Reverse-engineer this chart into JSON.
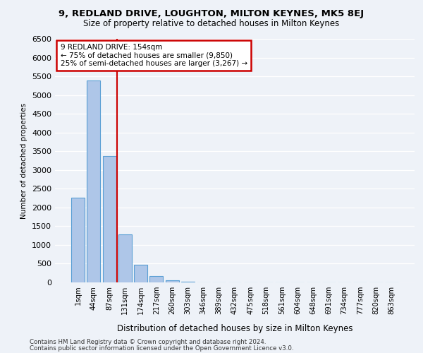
{
  "title1": "9, REDLAND DRIVE, LOUGHTON, MILTON KEYNES, MK5 8EJ",
  "title2": "Size of property relative to detached houses in Milton Keynes",
  "xlabel": "Distribution of detached houses by size in Milton Keynes",
  "ylabel": "Number of detached properties",
  "bar_values": [
    2270,
    5380,
    3380,
    1290,
    480,
    175,
    65,
    10,
    0,
    0,
    0,
    0,
    0,
    0,
    0,
    0,
    0,
    0,
    0,
    0,
    0
  ],
  "bin_labels": [
    "1sqm",
    "44sqm",
    "87sqm",
    "131sqm",
    "174sqm",
    "217sqm",
    "260sqm",
    "303sqm",
    "346sqm",
    "389sqm",
    "432sqm",
    "475sqm",
    "518sqm",
    "561sqm",
    "604sqm",
    "648sqm",
    "691sqm",
    "734sqm",
    "777sqm",
    "820sqm",
    "863sqm"
  ],
  "bar_color": "#aec6e8",
  "bar_edge_color": "#5a9fd4",
  "vline_color": "#cc0000",
  "vline_pos": 2.5,
  "annotation_title": "9 REDLAND DRIVE: 154sqm",
  "annotation_line1": "← 75% of detached houses are smaller (9,850)",
  "annotation_line2": "25% of semi-detached houses are larger (3,267) →",
  "annotation_box_color": "#cc0000",
  "ylim": [
    0,
    6500
  ],
  "yticks": [
    0,
    500,
    1000,
    1500,
    2000,
    2500,
    3000,
    3500,
    4000,
    4500,
    5000,
    5500,
    6000,
    6500
  ],
  "footer1": "Contains HM Land Registry data © Crown copyright and database right 2024.",
  "footer2": "Contains public sector information licensed under the Open Government Licence v3.0.",
  "bg_color": "#eef2f8",
  "grid_color": "#ffffff"
}
